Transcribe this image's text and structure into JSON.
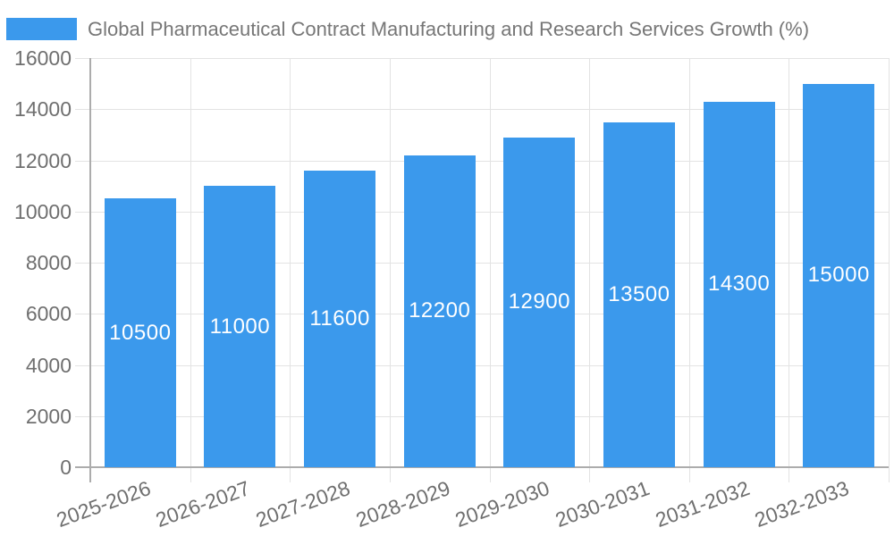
{
  "chart_data": {
    "type": "bar",
    "title": "Global Pharmaceutical Contract Manufacturing and Research Services Growth (%)",
    "categories": [
      "2025-2026",
      "2026-2027",
      "2027-2028",
      "2028-2029",
      "2029-2030",
      "2030-2031",
      "2031-2032",
      "2032-2033"
    ],
    "values": [
      10500,
      11000,
      11600,
      12200,
      12900,
      13500,
      14300,
      15000
    ],
    "bar_value_labels": [
      "10500",
      "11000",
      "11600",
      "12200",
      "12900",
      "13500",
      "14300",
      "15000"
    ],
    "xlabel": "",
    "ylabel": "",
    "ylim": [
      0,
      16000
    ],
    "ytick_step": 2000,
    "yticks": [
      0,
      2000,
      4000,
      6000,
      8000,
      10000,
      12000,
      14000,
      16000
    ],
    "ytick_labels": [
      "0",
      "2000",
      "4000",
      "6000",
      "8000",
      "10000",
      "12000",
      "14000",
      "16000"
    ],
    "grid": true,
    "legend_position": "top-left",
    "x_tick_rotation_deg": -20,
    "colors": {
      "bar": "#3b99ec",
      "bar_value_text": "#ffffff",
      "axis_text": "#6f6f6f",
      "title_text": "#777777",
      "gridline": "#e3e3e3",
      "axis_line": "#acacac",
      "background": "#ffffff"
    }
  }
}
